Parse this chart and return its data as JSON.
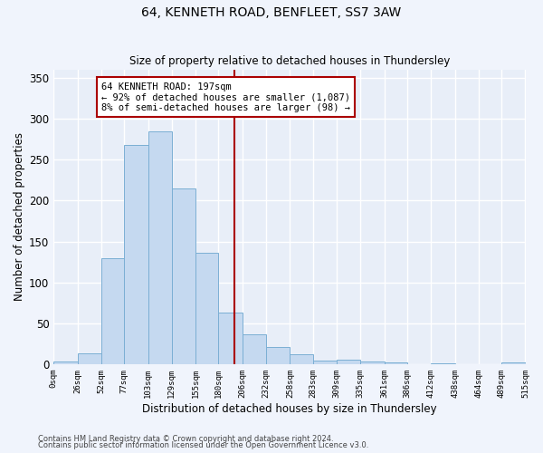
{
  "title": "64, KENNETH ROAD, BENFLEET, SS7 3AW",
  "subtitle": "Size of property relative to detached houses in Thundersley",
  "xlabel": "Distribution of detached houses by size in Thundersley",
  "ylabel": "Number of detached properties",
  "footnote1": "Contains HM Land Registry data © Crown copyright and database right 2024.",
  "footnote2": "Contains public sector information licensed under the Open Government Licence v3.0.",
  "bar_color": "#c5d9f0",
  "bar_edge_color": "#7bafd4",
  "background_color": "#e8eef8",
  "fig_background_color": "#f0f4fc",
  "grid_color": "#ffffff",
  "redline_color": "#aa0000",
  "redline_x": 197,
  "annotation_title": "64 KENNETH ROAD: 197sqm",
  "annotation_line1": "← 92% of detached houses are smaller (1,087)",
  "annotation_line2": "8% of semi-detached houses are larger (98) →",
  "bin_edges": [
    0,
    26,
    52,
    77,
    103,
    129,
    155,
    180,
    206,
    232,
    258,
    283,
    309,
    335,
    361,
    386,
    412,
    438,
    464,
    489,
    515
  ],
  "bar_heights": [
    3,
    13,
    130,
    268,
    285,
    215,
    136,
    63,
    36,
    21,
    12,
    4,
    5,
    3,
    2,
    0,
    1,
    0,
    0,
    2
  ],
  "ylim": [
    0,
    360
  ],
  "yticks": [
    0,
    50,
    100,
    150,
    200,
    250,
    300,
    350
  ]
}
